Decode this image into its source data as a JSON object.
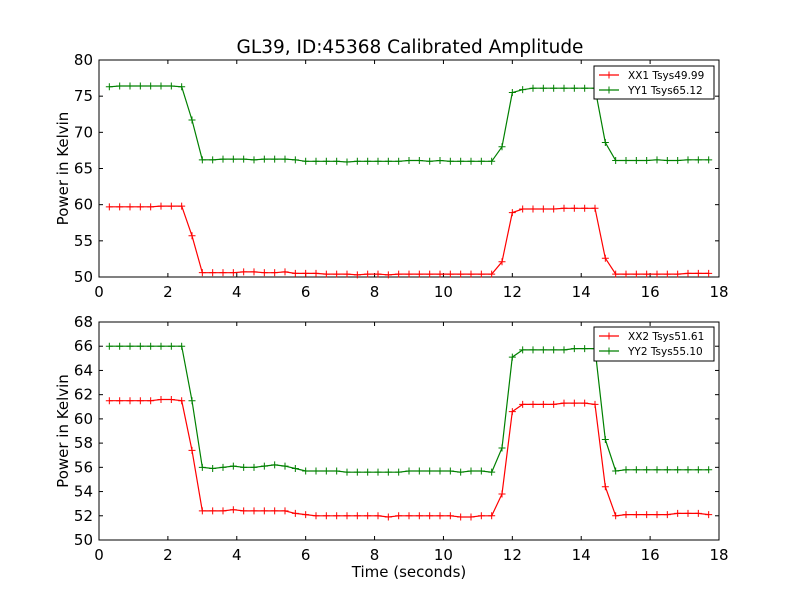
{
  "figure": {
    "title": "GL39, ID:45368 Calibrated Amplitude"
  },
  "chart_data": [
    {
      "type": "line",
      "title": "GL39, ID:45368 Calibrated Amplitude",
      "xlabel": "",
      "ylabel": "Power in Kelvin",
      "xlim": [
        0,
        18
      ],
      "ylim": [
        50,
        80
      ],
      "xticks": [
        "0",
        "2",
        "4",
        "6",
        "8",
        "10",
        "12",
        "14",
        "16",
        "18"
      ],
      "yticks": [
        "50",
        "55",
        "60",
        "65",
        "70",
        "75",
        "80"
      ],
      "grid": false,
      "legend_position": "top-right",
      "x": [
        0.3,
        0.6,
        0.9,
        1.2,
        1.5,
        1.8,
        2.1,
        2.4,
        2.7,
        3.0,
        3.3,
        3.6,
        3.9,
        4.2,
        4.5,
        4.8,
        5.1,
        5.4,
        5.7,
        6.0,
        6.3,
        6.6,
        6.9,
        7.2,
        7.5,
        7.8,
        8.1,
        8.4,
        8.7,
        9.0,
        9.3,
        9.6,
        9.9,
        10.2,
        10.5,
        10.8,
        11.1,
        11.4,
        11.7,
        12.0,
        12.3,
        12.6,
        12.9,
        13.2,
        13.5,
        13.8,
        14.1,
        14.4,
        14.7,
        15.0,
        15.3,
        15.6,
        15.9,
        16.2,
        16.5,
        16.8,
        17.1,
        17.4,
        17.7
      ],
      "series": [
        {
          "name": "XX1 Tsys49.99",
          "color": "#ff0000",
          "values": [
            59.7,
            59.7,
            59.7,
            59.7,
            59.7,
            59.8,
            59.8,
            59.8,
            55.7,
            50.6,
            50.6,
            50.6,
            50.6,
            50.7,
            50.7,
            50.6,
            50.6,
            50.7,
            50.5,
            50.5,
            50.5,
            50.4,
            50.4,
            50.4,
            50.3,
            50.4,
            50.4,
            50.3,
            50.4,
            50.4,
            50.4,
            50.4,
            50.4,
            50.4,
            50.4,
            50.4,
            50.4,
            50.4,
            52.1,
            58.9,
            59.4,
            59.4,
            59.4,
            59.4,
            59.5,
            59.5,
            59.5,
            59.5,
            52.6,
            50.4,
            50.4,
            50.4,
            50.4,
            50.4,
            50.4,
            50.4,
            50.5,
            50.5,
            50.5
          ]
        },
        {
          "name": "YY1 Tsys65.12",
          "color": "#008000",
          "values": [
            76.3,
            76.4,
            76.4,
            76.4,
            76.4,
            76.4,
            76.4,
            76.3,
            71.7,
            66.2,
            66.2,
            66.3,
            66.3,
            66.3,
            66.2,
            66.3,
            66.3,
            66.3,
            66.2,
            66.0,
            66.0,
            66.0,
            66.0,
            65.9,
            66.0,
            66.0,
            66.0,
            66.0,
            66.0,
            66.1,
            66.1,
            66.0,
            66.1,
            66.0,
            66.0,
            66.0,
            66.0,
            66.0,
            68.0,
            75.5,
            75.9,
            76.1,
            76.1,
            76.1,
            76.1,
            76.1,
            76.1,
            76.1,
            68.6,
            66.1,
            66.1,
            66.1,
            66.1,
            66.2,
            66.1,
            66.1,
            66.2,
            66.2,
            66.2
          ]
        }
      ]
    },
    {
      "type": "line",
      "title": "",
      "xlabel": "Time (seconds)",
      "ylabel": "Power in Kelvin",
      "xlim": [
        0,
        18
      ],
      "ylim": [
        50,
        68
      ],
      "xticks": [
        "0",
        "2",
        "4",
        "6",
        "8",
        "10",
        "12",
        "14",
        "16",
        "18"
      ],
      "yticks": [
        "50",
        "52",
        "54",
        "56",
        "58",
        "60",
        "62",
        "64",
        "66",
        "68"
      ],
      "grid": false,
      "legend_position": "top-right",
      "x": [
        0.3,
        0.6,
        0.9,
        1.2,
        1.5,
        1.8,
        2.1,
        2.4,
        2.7,
        3.0,
        3.3,
        3.6,
        3.9,
        4.2,
        4.5,
        4.8,
        5.1,
        5.4,
        5.7,
        6.0,
        6.3,
        6.6,
        6.9,
        7.2,
        7.5,
        7.8,
        8.1,
        8.4,
        8.7,
        9.0,
        9.3,
        9.6,
        9.9,
        10.2,
        10.5,
        10.8,
        11.1,
        11.4,
        11.7,
        12.0,
        12.3,
        12.6,
        12.9,
        13.2,
        13.5,
        13.8,
        14.1,
        14.4,
        14.7,
        15.0,
        15.3,
        15.6,
        15.9,
        16.2,
        16.5,
        16.8,
        17.1,
        17.4,
        17.7
      ],
      "series": [
        {
          "name": "XX2 Tsys51.61",
          "color": "#ff0000",
          "values": [
            61.5,
            61.5,
            61.5,
            61.5,
            61.5,
            61.6,
            61.6,
            61.5,
            57.4,
            52.4,
            52.4,
            52.4,
            52.5,
            52.4,
            52.4,
            52.4,
            52.4,
            52.4,
            52.2,
            52.1,
            52.0,
            52.0,
            52.0,
            52.0,
            52.0,
            52.0,
            52.0,
            51.9,
            52.0,
            52.0,
            52.0,
            52.0,
            52.0,
            52.0,
            51.9,
            51.9,
            52.0,
            52.0,
            53.8,
            60.6,
            61.2,
            61.2,
            61.2,
            61.2,
            61.3,
            61.3,
            61.3,
            61.2,
            54.4,
            52.0,
            52.1,
            52.1,
            52.1,
            52.1,
            52.1,
            52.2,
            52.2,
            52.2,
            52.1
          ]
        },
        {
          "name": "YY2 Tsys55.10",
          "color": "#008000",
          "values": [
            66.0,
            66.0,
            66.0,
            66.0,
            66.0,
            66.0,
            66.0,
            66.0,
            61.5,
            56.0,
            55.9,
            56.0,
            56.1,
            56.0,
            56.0,
            56.1,
            56.2,
            56.1,
            55.9,
            55.7,
            55.7,
            55.7,
            55.7,
            55.6,
            55.6,
            55.6,
            55.6,
            55.6,
            55.6,
            55.7,
            55.7,
            55.7,
            55.7,
            55.7,
            55.6,
            55.7,
            55.7,
            55.6,
            57.6,
            65.1,
            65.7,
            65.7,
            65.7,
            65.7,
            65.7,
            65.8,
            65.8,
            65.8,
            58.3,
            55.7,
            55.8,
            55.8,
            55.8,
            55.8,
            55.8,
            55.8,
            55.8,
            55.8,
            55.8
          ]
        }
      ]
    }
  ]
}
